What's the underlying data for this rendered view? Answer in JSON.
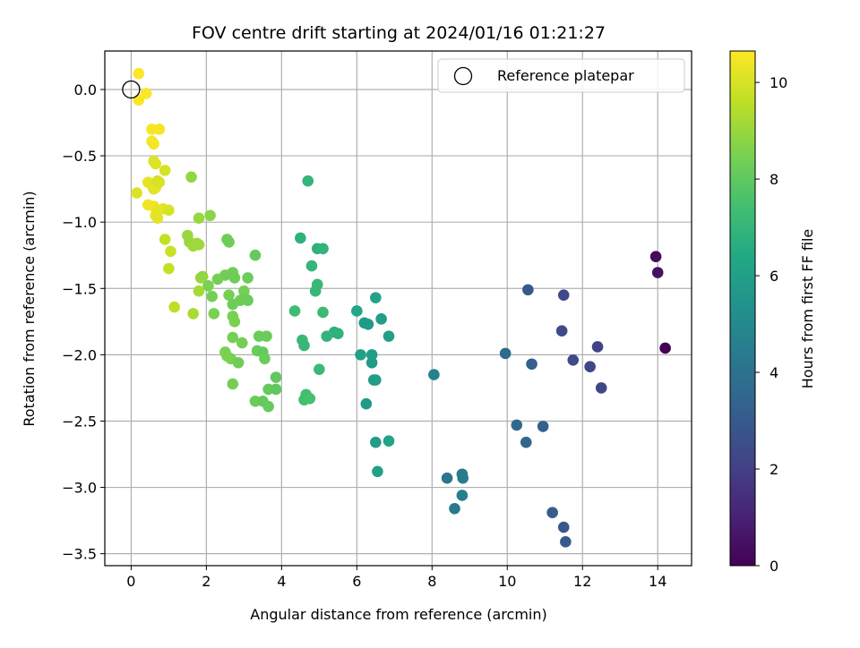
{
  "chart_data": {
    "type": "scatter",
    "title": "FOV centre drift starting at 2024/01/16 01:21:27",
    "xlabel": "Angular distance from reference (arcmin)",
    "ylabel": "Rotation from reference (arcmin)",
    "xlim": [
      -0.7,
      14.9
    ],
    "ylim": [
      -3.59,
      0.29
    ],
    "xticks": [
      0,
      2,
      4,
      6,
      8,
      10,
      12,
      14
    ],
    "yticks": [
      0.0,
      -0.5,
      -1.0,
      -1.5,
      -2.0,
      -2.5,
      -3.0,
      -3.5
    ],
    "xtick_labels": [
      "0",
      "2",
      "4",
      "6",
      "8",
      "10",
      "12",
      "14"
    ],
    "ytick_labels": [
      "0.0",
      "−0.5",
      "−1.0",
      "−1.5",
      "−2.0",
      "−2.5",
      "−3.0",
      "−3.5"
    ],
    "grid": true,
    "colormap": "viridis",
    "colorbar": {
      "label": "Hours from first FF file",
      "range": [
        0,
        10.65
      ],
      "ticks": [
        0,
        2,
        4,
        6,
        8,
        10
      ],
      "tick_labels": [
        "0",
        "2",
        "4",
        "6",
        "8",
        "10"
      ]
    },
    "legend": {
      "position": "top-right",
      "entries": [
        "Reference platepar"
      ]
    },
    "reference_point": {
      "x": 0.0,
      "y": 0.0
    },
    "points": [
      {
        "x": 14.2,
        "y": -1.95,
        "h": 0.0
      },
      {
        "x": 13.95,
        "y": -1.26,
        "h": 0.3
      },
      {
        "x": 14.0,
        "y": -1.38,
        "h": 0.5
      },
      {
        "x": 11.5,
        "y": -1.55,
        "h": 2.3
      },
      {
        "x": 11.45,
        "y": -1.82,
        "h": 2.4
      },
      {
        "x": 12.4,
        "y": -1.94,
        "h": 2.1
      },
      {
        "x": 12.5,
        "y": -2.25,
        "h": 2.2
      },
      {
        "x": 12.2,
        "y": -2.09,
        "h": 2.2
      },
      {
        "x": 11.75,
        "y": -2.04,
        "h": 2.4
      },
      {
        "x": 11.5,
        "y": -3.3,
        "h": 2.9
      },
      {
        "x": 11.55,
        "y": -3.41,
        "h": 3.0
      },
      {
        "x": 11.2,
        "y": -3.19,
        "h": 3.1
      },
      {
        "x": 10.55,
        "y": -1.51,
        "h": 3.0
      },
      {
        "x": 10.65,
        "y": -2.07,
        "h": 3.2
      },
      {
        "x": 10.95,
        "y": -2.54,
        "h": 3.3
      },
      {
        "x": 10.25,
        "y": -2.53,
        "h": 3.6
      },
      {
        "x": 10.5,
        "y": -2.66,
        "h": 3.5
      },
      {
        "x": 9.95,
        "y": -1.99,
        "h": 3.7
      },
      {
        "x": 8.05,
        "y": -2.15,
        "h": 4.6
      },
      {
        "x": 8.4,
        "y": -2.93,
        "h": 4.2
      },
      {
        "x": 8.6,
        "y": -3.16,
        "h": 4.3
      },
      {
        "x": 8.8,
        "y": -2.9,
        "h": 4.4
      },
      {
        "x": 8.82,
        "y": -2.93,
        "h": 4.4
      },
      {
        "x": 8.8,
        "y": -3.06,
        "h": 4.5
      },
      {
        "x": 6.5,
        "y": -2.66,
        "h": 5.9
      },
      {
        "x": 6.85,
        "y": -2.65,
        "h": 6.1
      },
      {
        "x": 6.55,
        "y": -2.88,
        "h": 6.0
      },
      {
        "x": 6.25,
        "y": -2.37,
        "h": 5.8
      },
      {
        "x": 6.4,
        "y": -2.06,
        "h": 5.8
      },
      {
        "x": 6.45,
        "y": -2.19,
        "h": 5.9
      },
      {
        "x": 6.5,
        "y": -2.19,
        "h": 5.9
      },
      {
        "x": 6.4,
        "y": -2.0,
        "h": 5.9
      },
      {
        "x": 6.1,
        "y": -2.0,
        "h": 6.0
      },
      {
        "x": 6.2,
        "y": -1.76,
        "h": 5.8
      },
      {
        "x": 6.3,
        "y": -1.77,
        "h": 5.8
      },
      {
        "x": 6.65,
        "y": -1.73,
        "h": 5.9
      },
      {
        "x": 6.85,
        "y": -1.86,
        "h": 6.0
      },
      {
        "x": 6.5,
        "y": -1.57,
        "h": 6.2
      },
      {
        "x": 6.0,
        "y": -1.67,
        "h": 6.3
      },
      {
        "x": 4.7,
        "y": -0.69,
        "h": 7.0
      },
      {
        "x": 4.5,
        "y": -1.12,
        "h": 6.8
      },
      {
        "x": 4.95,
        "y": -1.2,
        "h": 6.8
      },
      {
        "x": 5.1,
        "y": -1.2,
        "h": 6.9
      },
      {
        "x": 4.8,
        "y": -1.33,
        "h": 7.0
      },
      {
        "x": 4.95,
        "y": -1.47,
        "h": 7.1
      },
      {
        "x": 4.9,
        "y": -1.52,
        "h": 7.1
      },
      {
        "x": 4.35,
        "y": -1.67,
        "h": 7.3
      },
      {
        "x": 5.1,
        "y": -1.68,
        "h": 7.2
      },
      {
        "x": 5.4,
        "y": -1.83,
        "h": 6.8
      },
      {
        "x": 5.5,
        "y": -1.84,
        "h": 6.8
      },
      {
        "x": 5.2,
        "y": -1.86,
        "h": 6.9
      },
      {
        "x": 4.55,
        "y": -1.89,
        "h": 7.1
      },
      {
        "x": 4.6,
        "y": -1.93,
        "h": 7.1
      },
      {
        "x": 5.0,
        "y": -2.11,
        "h": 7.2
      },
      {
        "x": 4.65,
        "y": -2.3,
        "h": 7.4
      },
      {
        "x": 4.6,
        "y": -2.34,
        "h": 7.4
      },
      {
        "x": 4.75,
        "y": -2.33,
        "h": 7.5
      },
      {
        "x": 3.3,
        "y": -1.25,
        "h": 8.1
      },
      {
        "x": 2.7,
        "y": -1.38,
        "h": 8.3
      },
      {
        "x": 2.5,
        "y": -1.4,
        "h": 8.3
      },
      {
        "x": 2.75,
        "y": -1.42,
        "h": 8.3
      },
      {
        "x": 3.1,
        "y": -1.42,
        "h": 8.2
      },
      {
        "x": 2.55,
        "y": -1.13,
        "h": 8.3
      },
      {
        "x": 2.6,
        "y": -1.15,
        "h": 8.3
      },
      {
        "x": 2.3,
        "y": -1.43,
        "h": 8.4
      },
      {
        "x": 2.05,
        "y": -1.48,
        "h": 8.5
      },
      {
        "x": 2.6,
        "y": -1.55,
        "h": 8.4
      },
      {
        "x": 2.15,
        "y": -1.56,
        "h": 8.4
      },
      {
        "x": 3.0,
        "y": -1.52,
        "h": 8.4
      },
      {
        "x": 3.05,
        "y": -1.58,
        "h": 8.3
      },
      {
        "x": 2.7,
        "y": -1.62,
        "h": 8.3
      },
      {
        "x": 2.9,
        "y": -1.59,
        "h": 8.3
      },
      {
        "x": 3.1,
        "y": -1.59,
        "h": 8.2
      },
      {
        "x": 2.2,
        "y": -1.69,
        "h": 8.5
      },
      {
        "x": 2.7,
        "y": -1.71,
        "h": 8.5
      },
      {
        "x": 2.75,
        "y": -1.75,
        "h": 8.5
      },
      {
        "x": 3.4,
        "y": -1.86,
        "h": 8.2
      },
      {
        "x": 3.6,
        "y": -1.86,
        "h": 8.2
      },
      {
        "x": 2.7,
        "y": -1.87,
        "h": 8.4
      },
      {
        "x": 2.95,
        "y": -1.91,
        "h": 8.4
      },
      {
        "x": 2.5,
        "y": -1.98,
        "h": 8.5
      },
      {
        "x": 3.35,
        "y": -1.97,
        "h": 8.2
      },
      {
        "x": 3.5,
        "y": -1.98,
        "h": 8.1
      },
      {
        "x": 2.55,
        "y": -2.01,
        "h": 8.5
      },
      {
        "x": 2.65,
        "y": -2.03,
        "h": 8.5
      },
      {
        "x": 3.55,
        "y": -2.03,
        "h": 8.2
      },
      {
        "x": 2.85,
        "y": -2.06,
        "h": 8.3
      },
      {
        "x": 3.85,
        "y": -2.17,
        "h": 8.0
      },
      {
        "x": 2.7,
        "y": -2.22,
        "h": 8.4
      },
      {
        "x": 3.65,
        "y": -2.26,
        "h": 8.1
      },
      {
        "x": 3.85,
        "y": -2.26,
        "h": 8.0
      },
      {
        "x": 3.3,
        "y": -2.35,
        "h": 8.2
      },
      {
        "x": 3.5,
        "y": -2.35,
        "h": 8.1
      },
      {
        "x": 3.65,
        "y": -2.39,
        "h": 8.1
      },
      {
        "x": 1.6,
        "y": -0.66,
        "h": 8.9
      },
      {
        "x": 1.8,
        "y": -0.97,
        "h": 9.0
      },
      {
        "x": 2.1,
        "y": -0.95,
        "h": 8.8
      },
      {
        "x": 1.5,
        "y": -1.1,
        "h": 9.0
      },
      {
        "x": 1.55,
        "y": -1.15,
        "h": 9.0
      },
      {
        "x": 1.75,
        "y": -1.16,
        "h": 9.1
      },
      {
        "x": 1.8,
        "y": -1.17,
        "h": 9.1
      },
      {
        "x": 1.65,
        "y": -1.18,
        "h": 9.1
      },
      {
        "x": 1.85,
        "y": -1.42,
        "h": 9.0
      },
      {
        "x": 1.9,
        "y": -1.41,
        "h": 8.9
      },
      {
        "x": 1.8,
        "y": -1.52,
        "h": 9.2
      },
      {
        "x": 1.65,
        "y": -1.69,
        "h": 9.3
      },
      {
        "x": 1.15,
        "y": -1.64,
        "h": 9.6
      },
      {
        "x": 1.0,
        "y": -1.35,
        "h": 9.7
      },
      {
        "x": 1.05,
        "y": -1.22,
        "h": 9.8
      },
      {
        "x": 0.9,
        "y": -1.13,
        "h": 9.7
      },
      {
        "x": 0.15,
        "y": -0.78,
        "h": 10.1
      },
      {
        "x": 0.45,
        "y": -0.7,
        "h": 10.3
      },
      {
        "x": 0.55,
        "y": -0.72,
        "h": 10.2
      },
      {
        "x": 0.6,
        "y": -0.75,
        "h": 10.2
      },
      {
        "x": 0.65,
        "y": -0.74,
        "h": 10.2
      },
      {
        "x": 0.75,
        "y": -0.7,
        "h": 10.1
      },
      {
        "x": 0.7,
        "y": -0.69,
        "h": 10.0
      },
      {
        "x": 0.9,
        "y": -0.61,
        "h": 10.0
      },
      {
        "x": 0.6,
        "y": -0.54,
        "h": 10.1
      },
      {
        "x": 0.65,
        "y": -0.56,
        "h": 10.1
      },
      {
        "x": 0.45,
        "y": -0.87,
        "h": 10.4
      },
      {
        "x": 0.6,
        "y": -0.88,
        "h": 10.4
      },
      {
        "x": 0.7,
        "y": -0.91,
        "h": 10.3
      },
      {
        "x": 0.85,
        "y": -0.9,
        "h": 10.2
      },
      {
        "x": 1.0,
        "y": -0.91,
        "h": 10.0
      },
      {
        "x": 0.65,
        "y": -0.95,
        "h": 10.3
      },
      {
        "x": 0.7,
        "y": -0.97,
        "h": 10.2
      },
      {
        "x": 0.55,
        "y": -0.39,
        "h": 10.5
      },
      {
        "x": 0.6,
        "y": -0.41,
        "h": 10.5
      },
      {
        "x": 0.55,
        "y": -0.3,
        "h": 10.55
      },
      {
        "x": 0.75,
        "y": -0.3,
        "h": 10.5
      },
      {
        "x": 0.2,
        "y": -0.08,
        "h": 10.6
      },
      {
        "x": 0.4,
        "y": -0.03,
        "h": 10.6
      },
      {
        "x": 0.2,
        "y": 0.12,
        "h": 10.65
      }
    ]
  }
}
